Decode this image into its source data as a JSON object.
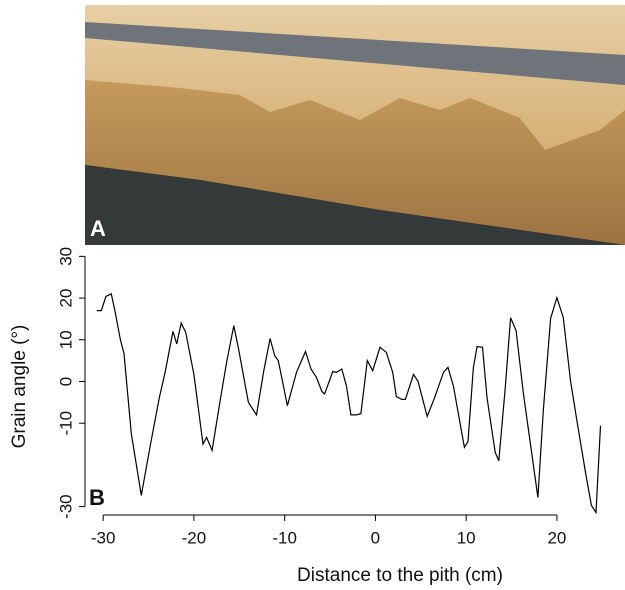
{
  "photo": {
    "label": "A"
  },
  "chart_data": {
    "type": "line",
    "panel_label": "B",
    "x_label": "Distance to the pith (cm)",
    "y_label": "Grain angle (°)",
    "xlim": [
      -32,
      27.5
    ],
    "ylim": [
      -32,
      32
    ],
    "xticks": [
      -30,
      -20,
      -10,
      0,
      10,
      20
    ],
    "yticks": [
      -30,
      -10,
      0,
      10,
      20,
      30
    ],
    "color": "#000000",
    "x": [
      -30.7,
      -30.2,
      -29.7,
      -29.1,
      -28.7,
      -28.1,
      -27.7,
      -26.9,
      -25.8,
      -24.8,
      -23.8,
      -23.2,
      -22.3,
      -21.9,
      -21.4,
      -20.9,
      -20,
      -19,
      -18.6,
      -18,
      -17.1,
      -16.4,
      -15.6,
      -15.1,
      -14,
      -13.1,
      -12.3,
      -11.6,
      -11.1,
      -10.7,
      -9.7,
      -8.7,
      -7.7,
      -7.1,
      -6.5,
      -5.9,
      -5.6,
      -4.7,
      -4.3,
      -3.7,
      -3.2,
      -2.7,
      -2.1,
      -1.6,
      -0.9,
      -0.3,
      0.5,
      1.2,
      1.9,
      2.3,
      2.9,
      3.3,
      4.2,
      4.7,
      5.7,
      6.5,
      7.5,
      8,
      8.6,
      9.8,
      10.2,
      10.8,
      11.2,
      11.8,
      12.3,
      13.2,
      13.6,
      14.3,
      14.9,
      15.5,
      16.3,
      17.9,
      18.5,
      19.3,
      20,
      20.7,
      21.5,
      22.2,
      23.2,
      23.8,
      24.3,
      24.8
    ],
    "values": [
      17,
      17,
      20.4,
      21,
      17,
      10,
      6.7,
      -12.5,
      -27.3,
      -15.3,
      -3.8,
      2,
      12,
      9,
      14,
      11.8,
      1.7,
      -15,
      -13.4,
      -16.5,
      -4.5,
      4.6,
      13.4,
      8,
      -5,
      -8,
      2.6,
      10.3,
      6.2,
      5,
      -5.8,
      2.2,
      7.2,
      3,
      1,
      -2.4,
      -3,
      2.4,
      2.2,
      3,
      -1,
      -8,
      -8,
      -7.7,
      5,
      2.6,
      8.2,
      7,
      2.2,
      -3.6,
      -4.3,
      -4.3,
      1.7,
      0,
      -8.4,
      -4,
      2.2,
      3.4,
      -1.2,
      -15.8,
      -14.4,
      3.4,
      8.4,
      8.2,
      -4,
      -17,
      -19,
      -1.7,
      15.3,
      12.2,
      -2.9,
      -27.8,
      -7,
      15.1,
      20.1,
      15.3,
      0.2,
      -9.4,
      -22.5,
      -29.7,
      -31.4,
      -10.6
    ]
  }
}
